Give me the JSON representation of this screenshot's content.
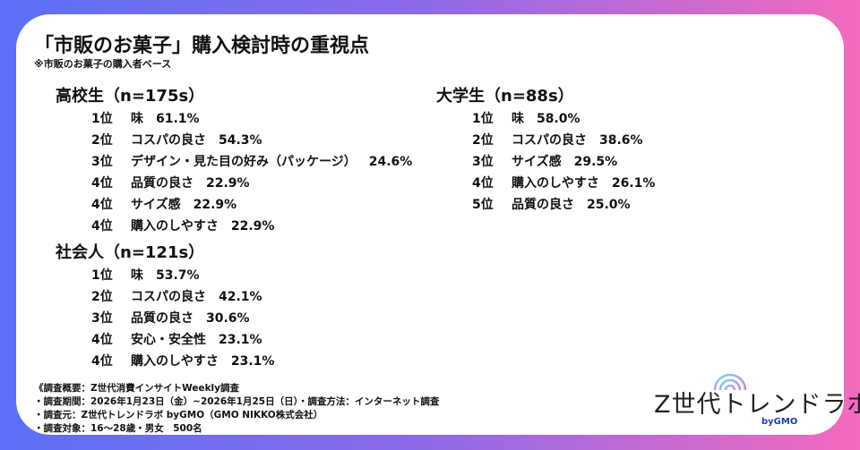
{
  "title": "「市販のお菓子」購入検討時の重視点",
  "subtitle": "※市販のお菓子の購入者ベース",
  "groups": [
    {
      "heading": "高校生（n=175s）",
      "rows": [
        {
          "rank": "1位",
          "item": "味",
          "value": "61.1%"
        },
        {
          "rank": "2位",
          "item": "コスパの良さ",
          "value": "54.3%"
        },
        {
          "rank": "3位",
          "item": "デザイン・見た目の好み（パッケージ）",
          "value": "24.6%"
        },
        {
          "rank": "4位",
          "item": "品質の良さ",
          "value": "22.9%"
        },
        {
          "rank": "4位",
          "item": "サイズ感",
          "value": "22.9%"
        },
        {
          "rank": "4位",
          "item": "購入のしやすさ",
          "value": "22.9%"
        }
      ]
    },
    {
      "heading": "社会人（n=121s）",
      "rows": [
        {
          "rank": "1位",
          "item": "味",
          "value": "53.7%"
        },
        {
          "rank": "2位",
          "item": "コスパの良さ",
          "value": "42.1%"
        },
        {
          "rank": "3位",
          "item": "品質の良さ",
          "value": "30.6%"
        },
        {
          "rank": "4位",
          "item": "安心・安全性",
          "value": "23.1%"
        },
        {
          "rank": "4位",
          "item": "購入のしやすさ",
          "value": "23.1%"
        }
      ]
    },
    {
      "heading": "大学生（n=88s）",
      "rows": [
        {
          "rank": "1位",
          "item": "味",
          "value": "58.0%"
        },
        {
          "rank": "2位",
          "item": "コスパの良さ",
          "value": "38.6%"
        },
        {
          "rank": "3位",
          "item": "サイズ感",
          "value": "29.5%"
        },
        {
          "rank": "4位",
          "item": "購入のしやすさ",
          "value": "26.1%"
        },
        {
          "rank": "5位",
          "item": "品質の良さ",
          "value": "25.0%"
        }
      ]
    }
  ],
  "footer": [
    "《調査概要：Z世代消費インサイトWeekly調査",
    "・調査期間：2026年1月23日（金）~2026年1月25日（日）・調査方法：インターネット調査",
    "・調査元：Z世代トレンドラボ byGMO（GMO NIKKO株式会社）",
    "・調査対象：16〜28歳・男女　500名"
  ],
  "logo": {
    "text": "Z世代トレンドラボ",
    "by": "byGMO"
  },
  "colors": {
    "gradient_start": "#5a70f6",
    "gradient_end": "#f46abd"
  }
}
